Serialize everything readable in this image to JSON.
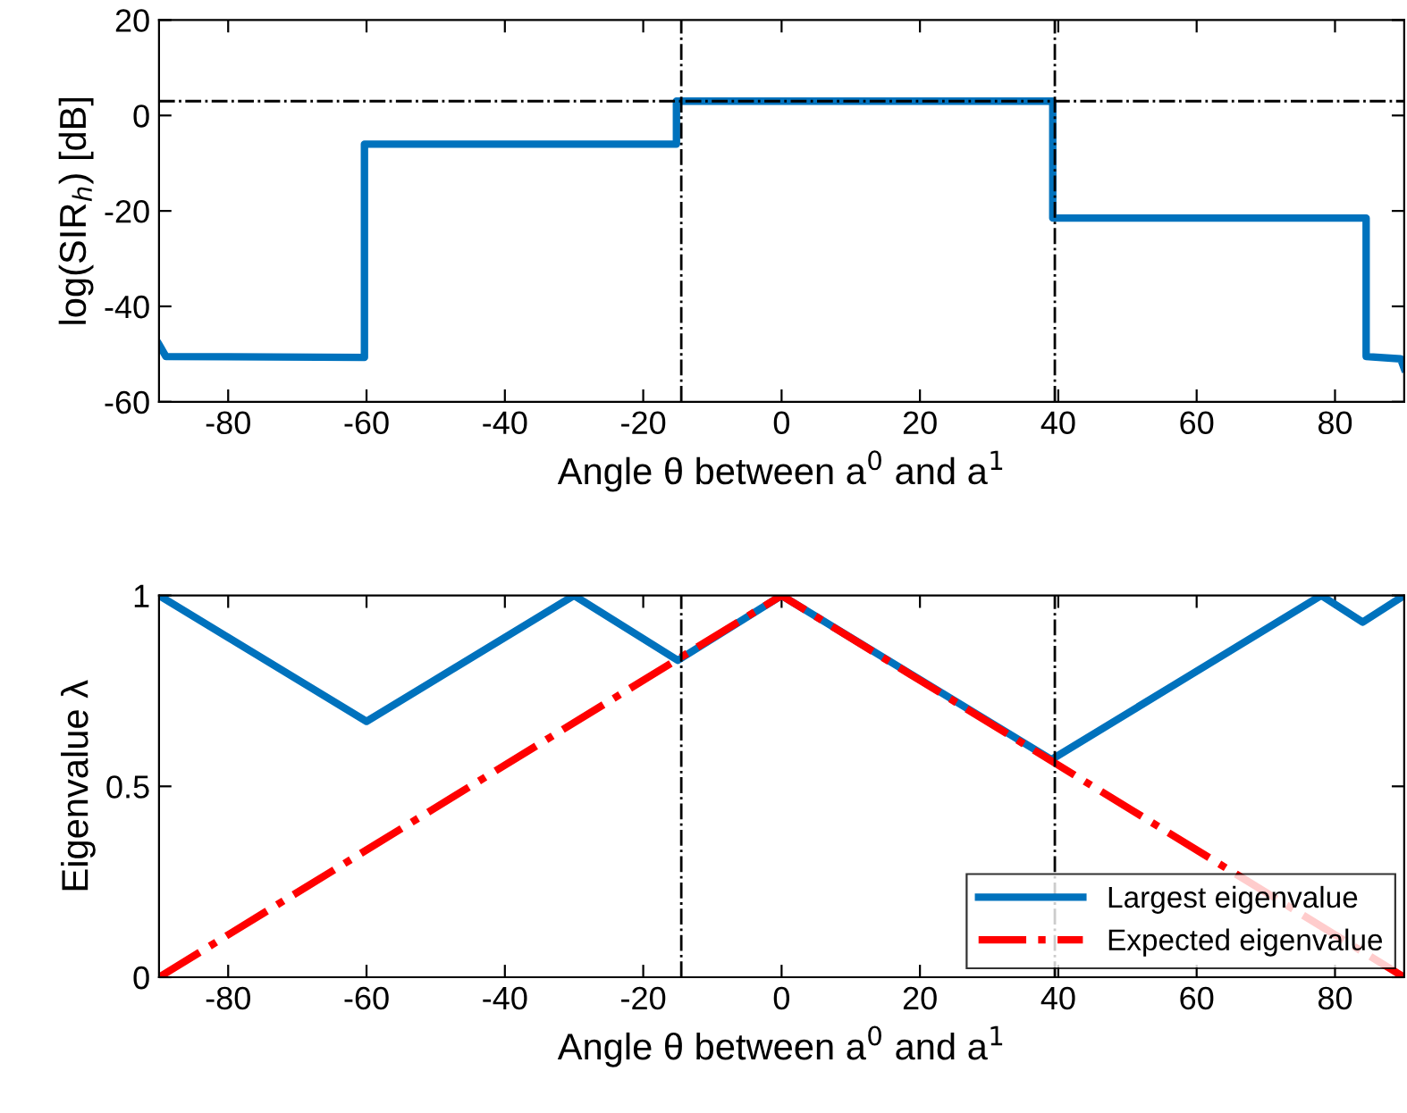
{
  "chart_data": [
    {
      "type": "line",
      "xlabel": "Angle θ between a$^{0}$ and a$^{1}$",
      "ylabel": "log(SIR$_{h}$) [dB]",
      "xlim": [
        -90,
        90
      ],
      "xticks": [
        -80,
        -60,
        -40,
        -20,
        0,
        20,
        40,
        60,
        80
      ],
      "ylim": [
        -60,
        20
      ],
      "yticks": [
        -60,
        -40,
        -20,
        0,
        20
      ],
      "grid": false,
      "legend": false,
      "series": [
        {
          "color": "#0072bd",
          "line_style": "solid",
          "x": [
            -90,
            -89,
            -60.3,
            -60.3,
            -15.2,
            -15.2,
            39.2,
            39.2,
            84.5,
            84.5,
            89.5,
            90
          ],
          "values": [
            -48,
            -50.5,
            -50.7,
            -6,
            -6,
            3,
            3,
            -21.5,
            -21.5,
            -50.5,
            -51,
            -53
          ]
        }
      ],
      "ref_lines": [
        {
          "axis": "y",
          "value": 3,
          "color": "#000000",
          "line_style": "dashdot"
        },
        {
          "axis": "x",
          "value": -14.5,
          "color": "#000000",
          "line_style": "dashdot"
        },
        {
          "axis": "x",
          "value": 39.5,
          "color": "#000000",
          "line_style": "dashdot"
        }
      ]
    },
    {
      "type": "line",
      "xlabel": "Angle θ between a$^{0}$ and a$^{1}$",
      "ylabel": "Eigenvalue λ",
      "xlim": [
        -90,
        90
      ],
      "xticks": [
        -80,
        -60,
        -40,
        -20,
        0,
        20,
        40,
        60,
        80
      ],
      "ylim": [
        0,
        1
      ],
      "yticks": [
        0,
        0.5,
        1
      ],
      "grid": false,
      "legend": "bottom right",
      "series": [
        {
          "name": "Largest eigenvalue",
          "color": "#0072bd",
          "line_style": "solid",
          "x": [
            -90,
            -60,
            -30,
            -15,
            0,
            39,
            78,
            84,
            90
          ],
          "values": [
            1,
            0.67,
            1,
            0.83,
            1,
            0.57,
            1,
            0.93,
            1
          ]
        },
        {
          "name": "Expected eigenvalue",
          "color": "#ff0000",
          "line_style": "dashdot",
          "x": [
            -90,
            0,
            90
          ],
          "values": [
            0,
            1,
            0
          ]
        }
      ],
      "ref_lines": [
        {
          "axis": "x",
          "value": -14.5,
          "color": "#000000",
          "line_style": "dashdot"
        },
        {
          "axis": "x",
          "value": 39.5,
          "color": "#000000",
          "line_style": "dashdot"
        }
      ]
    }
  ]
}
